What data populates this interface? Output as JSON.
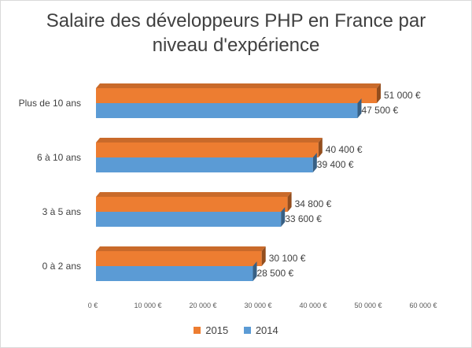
{
  "chart_data": {
    "type": "bar",
    "orientation": "horizontal",
    "style": "3d",
    "title": "Salaire des développeurs PHP en France par niveau d'expérience",
    "title_lines": [
      "Salaire des développeurs PHP en France par",
      "niveau d'expérience"
    ],
    "categories": [
      "0 à 2 ans",
      "3 à 5 ans",
      "6 à 10 ans",
      "Plus de 10 ans"
    ],
    "series": [
      {
        "name": "2015",
        "color": "#ed7d31",
        "values": [
          30100,
          34800,
          40400,
          51000
        ],
        "labels": [
          "30 100 €",
          "34 800 €",
          "40 400 €",
          "51 000 €"
        ]
      },
      {
        "name": "2014",
        "color": "#5b9bd5",
        "values": [
          28500,
          33600,
          39400,
          47500
        ],
        "labels": [
          "28 500 €",
          "33 600 €",
          "39 400 €",
          "47 500 €"
        ]
      }
    ],
    "xlim": [
      0,
      60000
    ],
    "xticks": [
      0,
      10000,
      20000,
      30000,
      40000,
      50000,
      60000
    ],
    "xtick_labels": [
      "0 €",
      "10 000 €",
      "20 000 €",
      "30 000 €",
      "40 000 €",
      "50 000 €",
      "60 000 €"
    ],
    "grid": "none",
    "legend": "bottom"
  }
}
